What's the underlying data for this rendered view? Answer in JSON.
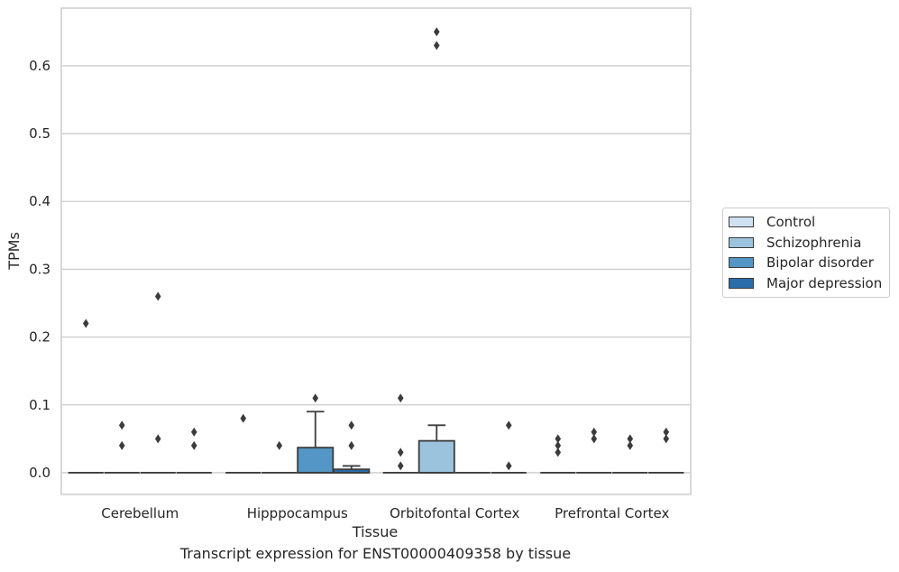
{
  "chart_data": {
    "type": "box",
    "caption": "Transcript expression for ENST00000409358 by tissue",
    "xlabel": "Tissue",
    "ylabel": "TPMs",
    "ylim": [
      -0.032,
      0.685
    ],
    "yticks": [
      "0.0",
      "0.1",
      "0.2",
      "0.3",
      "0.4",
      "0.5",
      "0.6"
    ],
    "categories": [
      "Cerebellum",
      "Hipppocampus",
      "Orbitofontal Cortex",
      "Prefrontal Cortex"
    ],
    "grid": true,
    "legend_position": "right",
    "series": [
      {
        "name": "Control",
        "color": "#cfe0f0",
        "boxes": [
          {
            "q1": 0,
            "median": 0,
            "q3": 0,
            "whisker_low": 0,
            "whisker_high": 0,
            "outliers": [
              0.22
            ]
          },
          {
            "q1": 0,
            "median": 0,
            "q3": 0,
            "whisker_low": 0,
            "whisker_high": 0,
            "outliers": [
              0.08
            ]
          },
          {
            "q1": 0,
            "median": 0,
            "q3": 0,
            "whisker_low": 0,
            "whisker_high": 0,
            "outliers": [
              0.01,
              0.03,
              0.11
            ]
          },
          {
            "q1": 0,
            "median": 0,
            "q3": 0,
            "whisker_low": 0,
            "whisker_high": 0,
            "outliers": [
              0.03,
              0.04,
              0.05
            ]
          }
        ]
      },
      {
        "name": "Schizophrenia",
        "color": "#9cc3dd",
        "boxes": [
          {
            "q1": 0,
            "median": 0,
            "q3": 0,
            "whisker_low": 0,
            "whisker_high": 0,
            "outliers": [
              0.04,
              0.07
            ]
          },
          {
            "q1": 0,
            "median": 0,
            "q3": 0,
            "whisker_low": 0,
            "whisker_high": 0,
            "outliers": [
              0.04
            ]
          },
          {
            "q1": 0,
            "median": 0,
            "q3": 0.047,
            "whisker_low": 0,
            "whisker_high": 0.07,
            "outliers": [
              0.63,
              0.65
            ]
          },
          {
            "q1": 0,
            "median": 0,
            "q3": 0,
            "whisker_low": 0,
            "whisker_high": 0,
            "outliers": [
              0.05,
              0.06
            ]
          }
        ]
      },
      {
        "name": "Bipolar disorder",
        "color": "#5496c5",
        "boxes": [
          {
            "q1": 0,
            "median": 0,
            "q3": 0,
            "whisker_low": 0,
            "whisker_high": 0,
            "outliers": [
              0.05,
              0.26
            ]
          },
          {
            "q1": 0,
            "median": 0,
            "q3": 0.037,
            "whisker_low": 0,
            "whisker_high": 0.09,
            "outliers": [
              0.11
            ]
          },
          {
            "q1": 0,
            "median": 0,
            "q3": 0,
            "whisker_low": 0,
            "whisker_high": 0,
            "outliers": []
          },
          {
            "q1": 0,
            "median": 0,
            "q3": 0,
            "whisker_low": 0,
            "whisker_high": 0,
            "outliers": [
              0.04,
              0.05
            ]
          }
        ]
      },
      {
        "name": "Major depression",
        "color": "#2a6dab",
        "boxes": [
          {
            "q1": 0,
            "median": 0,
            "q3": 0,
            "whisker_low": 0,
            "whisker_high": 0,
            "outliers": [
              0.04,
              0.06
            ]
          },
          {
            "q1": 0,
            "median": 0,
            "q3": 0.005,
            "whisker_low": 0,
            "whisker_high": 0.01,
            "outliers": [
              0.04,
              0.07
            ]
          },
          {
            "q1": 0,
            "median": 0,
            "q3": 0,
            "whisker_low": 0,
            "whisker_high": 0,
            "outliers": [
              0.01,
              0.07
            ]
          },
          {
            "q1": 0,
            "median": 0,
            "q3": 0,
            "whisker_low": 0,
            "whisker_high": 0,
            "outliers": [
              0.05,
              0.06
            ]
          }
        ]
      }
    ]
  }
}
